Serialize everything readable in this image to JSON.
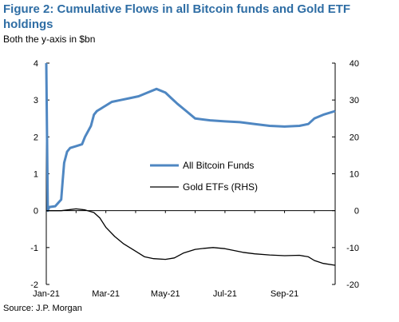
{
  "header": {
    "title": "Figure 2: Cumulative Flows in all Bitcoin funds and Gold ETF holdings",
    "subtitle": "Both the y-axis in $bn"
  },
  "footer": {
    "source": "Source: J.P. Morgan"
  },
  "colors": {
    "bitcoin": "#4f87c2",
    "gold": "#000000",
    "title": "#2e6da4"
  },
  "chart_data": {
    "type": "line",
    "title": "Figure 2: Cumulative Flows in all Bitcoin funds and Gold ETF holdings",
    "subtitle": "Both the y-axis in $bn",
    "x_ticks": [
      "Jan-21",
      "Mar-21",
      "May-21",
      "Jul-21",
      "Sep-21"
    ],
    "x_tick_positions": [
      0,
      2,
      4,
      6,
      8
    ],
    "xlim": [
      0,
      9.7
    ],
    "ylim_left": [
      -2,
      4
    ],
    "yticks_left": [
      "-2",
      "-1",
      "0",
      "1",
      "2",
      "3",
      "4"
    ],
    "ylim_right": [
      -20,
      40
    ],
    "yticks_right": [
      "-20",
      "-10",
      "0",
      "10",
      "20",
      "30",
      "40"
    ],
    "grid": false,
    "legend_position": "center",
    "series": [
      {
        "name": "All Bitcoin Funds",
        "axis": "left",
        "x": [
          0,
          0.05,
          0.1,
          0.3,
          0.5,
          0.55,
          0.6,
          0.7,
          0.8,
          1.0,
          1.2,
          1.3,
          1.5,
          1.6,
          1.7,
          1.9,
          2.0,
          2.2,
          2.5,
          2.8,
          3.1,
          3.4,
          3.7,
          4.0,
          4.2,
          4.4,
          4.7,
          5.0,
          5.5,
          6.0,
          6.5,
          7.0,
          7.5,
          8.0,
          8.5,
          8.8,
          9.0,
          9.3,
          9.5,
          9.7
        ],
        "y": [
          4.0,
          0.0,
          0.1,
          0.12,
          0.3,
          0.8,
          1.3,
          1.6,
          1.7,
          1.75,
          1.8,
          2.0,
          2.3,
          2.6,
          2.7,
          2.8,
          2.85,
          2.95,
          3.0,
          3.05,
          3.1,
          3.2,
          3.3,
          3.2,
          3.05,
          2.9,
          2.7,
          2.5,
          2.45,
          2.42,
          2.4,
          2.35,
          2.3,
          2.28,
          2.3,
          2.35,
          2.5,
          2.6,
          2.65,
          2.7
        ]
      },
      {
        "name": "Gold ETFs (RHS)",
        "axis": "right",
        "x": [
          0,
          0.5,
          0.8,
          1.0,
          1.3,
          1.6,
          1.8,
          2.0,
          2.3,
          2.6,
          3.0,
          3.3,
          3.6,
          4.0,
          4.3,
          4.6,
          5.0,
          5.3,
          5.6,
          6.0,
          6.3,
          6.6,
          7.0,
          7.5,
          8.0,
          8.5,
          8.8,
          9.0,
          9.3,
          9.7
        ],
        "y": [
          0.0,
          0.0,
          0.3,
          0.5,
          0.2,
          -0.5,
          -2.0,
          -4.5,
          -7.0,
          -9.0,
          -11.0,
          -12.5,
          -13.0,
          -13.2,
          -12.8,
          -11.5,
          -10.5,
          -10.2,
          -10.0,
          -10.3,
          -10.8,
          -11.3,
          -11.7,
          -12.0,
          -12.2,
          -12.1,
          -12.5,
          -13.5,
          -14.3,
          -14.8
        ]
      }
    ]
  }
}
